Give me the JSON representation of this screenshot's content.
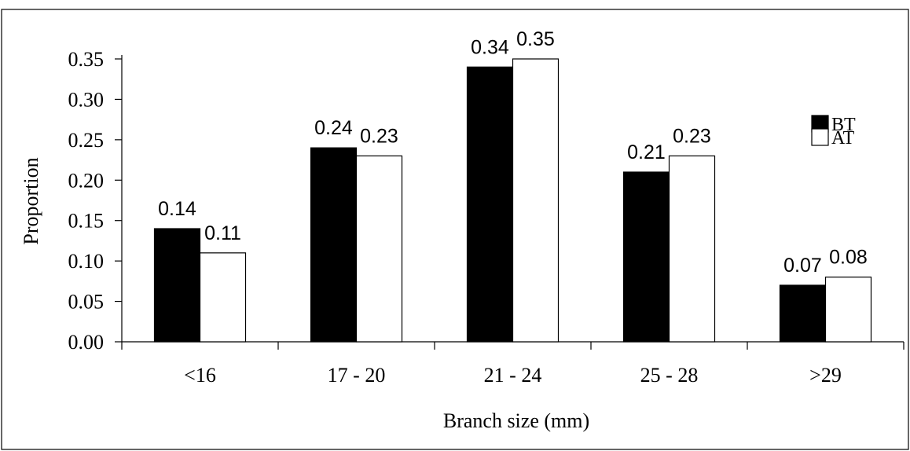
{
  "chart_data": {
    "type": "bar",
    "title": "",
    "xlabel": "Branch size (mm)",
    "ylabel": "Proportion",
    "categories": [
      "<16",
      "17 - 20",
      "21 - 24",
      "25 - 28",
      ">29"
    ],
    "series": [
      {
        "name": "BT",
        "values": [
          0.14,
          0.24,
          0.34,
          0.21,
          0.07
        ],
        "labels": [
          "0.14",
          "0.24",
          "0.34",
          "0.21",
          "0.07"
        ],
        "color": "#000000"
      },
      {
        "name": "AT",
        "values": [
          0.11,
          0.23,
          0.35,
          0.23,
          0.08
        ],
        "labels": [
          "0.11",
          "0.23",
          "0.35",
          "0.23",
          "0.08"
        ],
        "color": "#ffffff"
      }
    ],
    "ylim": [
      0,
      0.35
    ],
    "yticks": [
      "0.00",
      "0.05",
      "0.10",
      "0.15",
      "0.20",
      "0.25",
      "0.30",
      "0.35"
    ],
    "grid": false,
    "legend": "top-right"
  }
}
